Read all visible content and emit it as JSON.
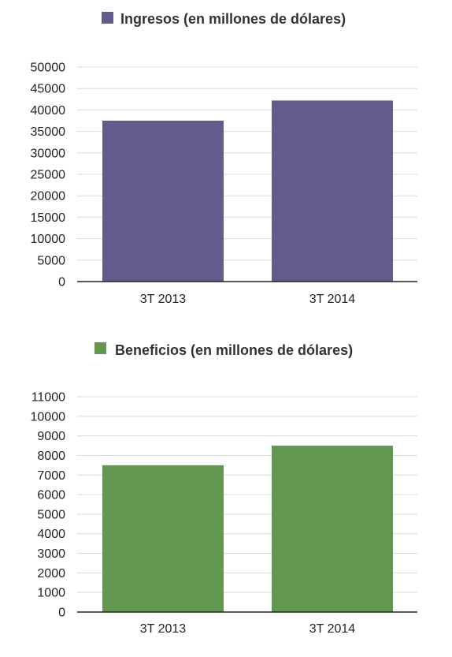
{
  "chart_data": [
    {
      "type": "bar",
      "categories": [
        "3T 2013",
        "3T 2014"
      ],
      "series": [
        {
          "name": "Ingresos (en millones de dólares)",
          "values": [
            37500,
            42200
          ],
          "color": "#625c8d"
        }
      ],
      "ylim": [
        0,
        50000
      ],
      "yticks": [
        "0",
        "5000",
        "10000",
        "15000",
        "20000",
        "25000",
        "30000",
        "35000",
        "40000",
        "45000",
        "50000"
      ],
      "grid": true,
      "legend": "top-center"
    },
    {
      "type": "bar",
      "categories": [
        "3T 2013",
        "3T 2014"
      ],
      "series": [
        {
          "name": "Beneficios (en millones de dólares)",
          "values": [
            7500,
            8500
          ],
          "color": "#62974f"
        }
      ],
      "ylim": [
        0,
        11000
      ],
      "yticks": [
        "0",
        "1000",
        "2000",
        "3000",
        "4000",
        "5000",
        "6000",
        "7000",
        "8000",
        "9000",
        "10000",
        "11000"
      ],
      "grid": true,
      "legend": "top-center"
    }
  ]
}
